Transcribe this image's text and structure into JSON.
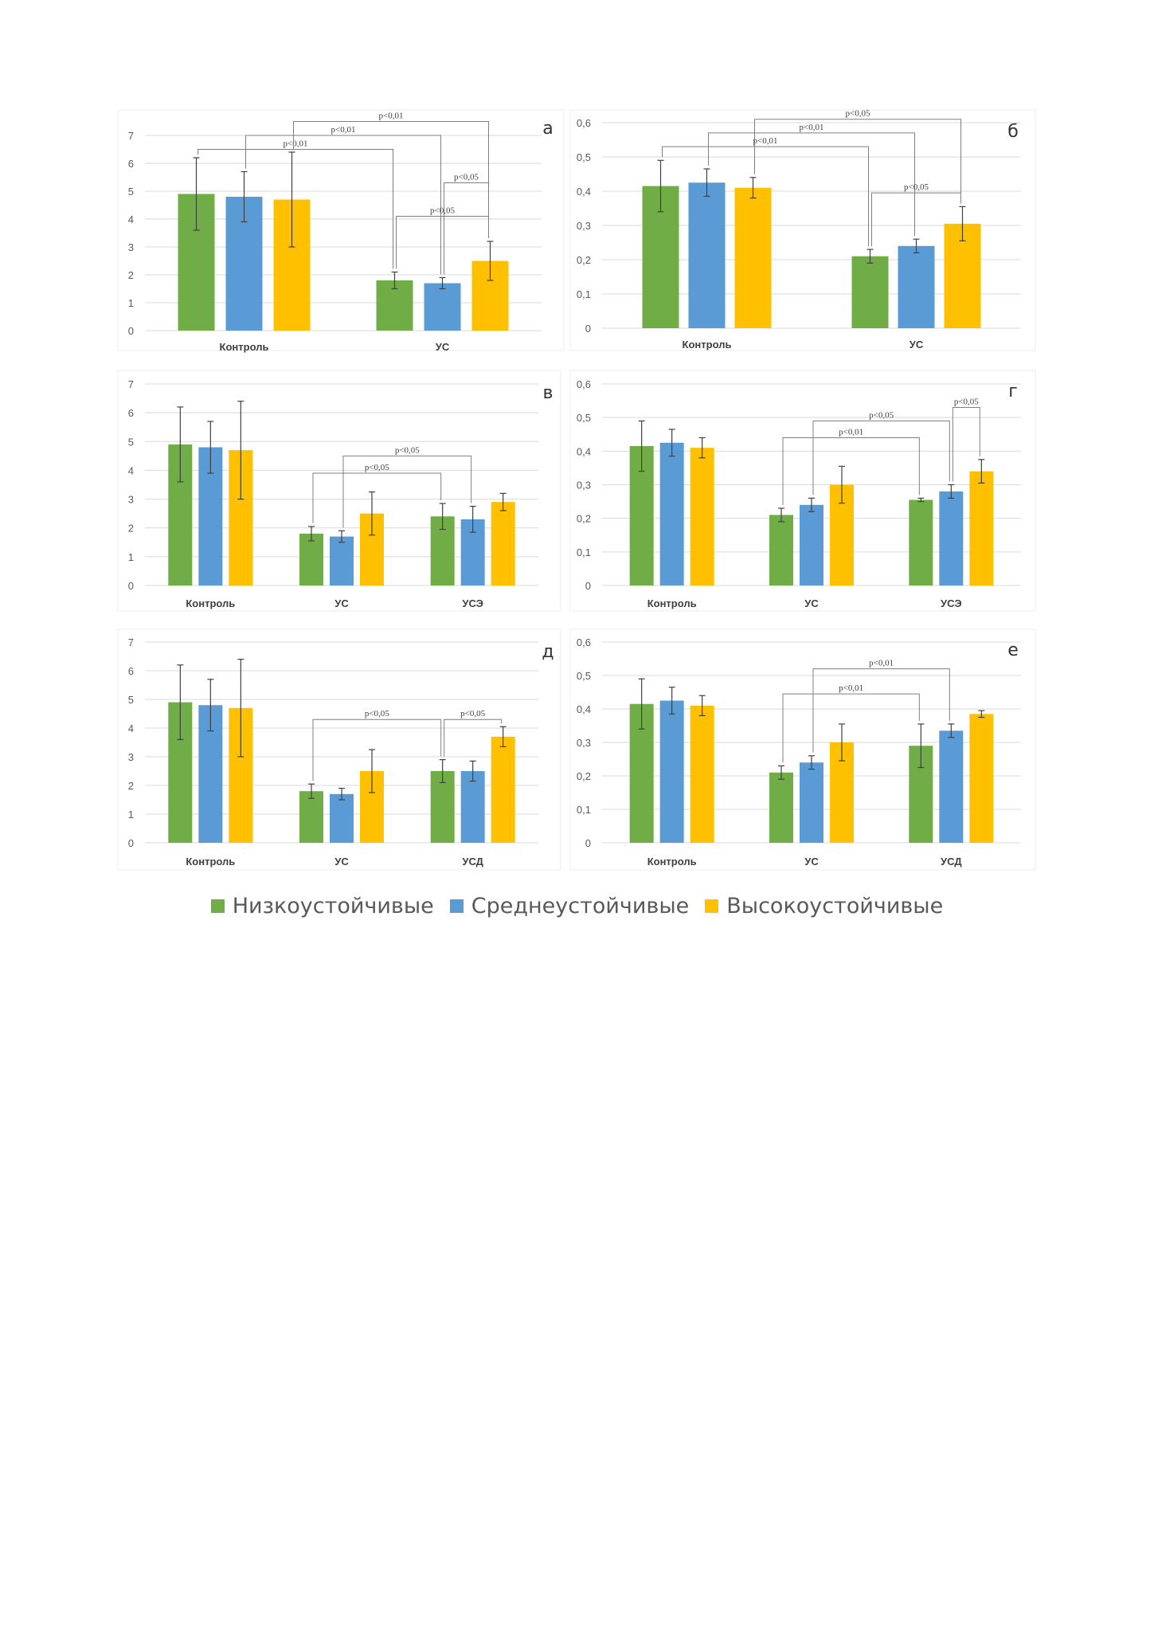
{
  "colors": {
    "green": "#70AD47",
    "blue": "#5B9BD5",
    "yellow": "#FFC000"
  },
  "legend": [
    {
      "name": "Низкоустойчивые",
      "color": "#70AD47"
    },
    {
      "name": "Среднеустойчивые",
      "color": "#5B9BD5"
    },
    {
      "name": "Высокоустойчивые",
      "color": "#FFC000"
    }
  ],
  "chart_data": [
    {
      "panel": "а",
      "type": "bar",
      "ylim": [
        0,
        7
      ],
      "yticks": [
        "0",
        "1",
        "2",
        "3",
        "4",
        "5",
        "6",
        "7"
      ],
      "categories": [
        "Контроль",
        "УС"
      ],
      "series": [
        {
          "name": "Низкоустойчивые",
          "values": [
            4.9,
            1.8
          ],
          "err": [
            1.3,
            0.3
          ]
        },
        {
          "name": "Среднеустойчивые",
          "values": [
            4.8,
            1.7
          ],
          "err": [
            0.9,
            0.2
          ]
        },
        {
          "name": "Высокоустойчивые",
          "values": [
            4.7,
            2.5
          ],
          "err": [
            1.7,
            0.7
          ]
        }
      ],
      "annotations": [
        {
          "text": "p<0,01",
          "from": [
            0,
            0
          ],
          "to": [
            1,
            0
          ],
          "level": 6.5
        },
        {
          "text": "p<0,01",
          "from": [
            0,
            1
          ],
          "to": [
            1,
            1
          ],
          "level": 7.0
        },
        {
          "text": "p<0,01",
          "from": [
            0,
            2
          ],
          "to": [
            1,
            2
          ],
          "level": 7.5
        },
        {
          "text": "p<0,05",
          "from": [
            1,
            0
          ],
          "to": [
            1,
            2
          ],
          "level": 4.1
        },
        {
          "text": "p<0,05",
          "from": [
            1,
            1
          ],
          "to": [
            1,
            2
          ],
          "level": 5.3
        }
      ]
    },
    {
      "panel": "б",
      "type": "bar",
      "ylim": [
        0,
        0.6
      ],
      "yticks": [
        "0",
        "0,1",
        "0,2",
        "0,3",
        "0,4",
        "0,5",
        "0,6"
      ],
      "categories": [
        "Контроль",
        "УС"
      ],
      "series": [
        {
          "name": "Низкоустойчивые",
          "values": [
            0.415,
            0.21
          ],
          "err": [
            0.075,
            0.02
          ]
        },
        {
          "name": "Среднеустойчивые",
          "values": [
            0.425,
            0.24
          ],
          "err": [
            0.04,
            0.02
          ]
        },
        {
          "name": "Высокоустойчивые",
          "values": [
            0.41,
            0.305
          ],
          "err": [
            0.03,
            0.05
          ]
        }
      ],
      "annotations": [
        {
          "text": "p<0,01",
          "from": [
            0,
            0
          ],
          "to": [
            1,
            0
          ],
          "level": 0.53
        },
        {
          "text": "p<0,01",
          "from": [
            0,
            1
          ],
          "to": [
            1,
            1
          ],
          "level": 0.57
        },
        {
          "text": "p<0,05",
          "from": [
            0,
            2
          ],
          "to": [
            1,
            2
          ],
          "level": 0.61
        },
        {
          "text": "p<0,05",
          "from": [
            1,
            0
          ],
          "to": [
            1,
            2
          ],
          "level": 0.395
        }
      ]
    },
    {
      "panel": "в",
      "type": "bar",
      "ylim": [
        0,
        7
      ],
      "yticks": [
        "0",
        "1",
        "2",
        "3",
        "4",
        "5",
        "6",
        "7"
      ],
      "categories": [
        "Контроль",
        "УС",
        "УСЭ"
      ],
      "series": [
        {
          "name": "Низкоустойчивые",
          "values": [
            4.9,
            1.8,
            2.4
          ],
          "err": [
            1.3,
            0.25,
            0.45
          ]
        },
        {
          "name": "Среднеустойчивые",
          "values": [
            4.8,
            1.7,
            2.3
          ],
          "err": [
            0.9,
            0.2,
            0.45
          ]
        },
        {
          "name": "Высокоустойчивые",
          "values": [
            4.7,
            2.5,
            2.9
          ],
          "err": [
            1.7,
            0.75,
            0.3
          ]
        }
      ],
      "annotations": [
        {
          "text": "p<0,05",
          "from": [
            1,
            0
          ],
          "to": [
            2,
            0
          ],
          "level": 3.9
        },
        {
          "text": "p<0,05",
          "from": [
            1,
            1
          ],
          "to": [
            2,
            1
          ],
          "level": 4.5
        }
      ]
    },
    {
      "panel": "г",
      "type": "bar",
      "ylim": [
        0,
        0.6
      ],
      "yticks": [
        "0",
        "0,1",
        "0,2",
        "0,3",
        "0,4",
        "0,5",
        "0,6"
      ],
      "categories": [
        "Контроль",
        "УС",
        "УСЭ"
      ],
      "series": [
        {
          "name": "Низкоустойчивые",
          "values": [
            0.415,
            0.21,
            0.255
          ],
          "err": [
            0.075,
            0.02,
            0.005
          ]
        },
        {
          "name": "Среднеустойчивые",
          "values": [
            0.425,
            0.24,
            0.28
          ],
          "err": [
            0.04,
            0.02,
            0.02
          ]
        },
        {
          "name": "Высокоустойчивые",
          "values": [
            0.41,
            0.3,
            0.34
          ],
          "err": [
            0.03,
            0.055,
            0.035
          ]
        }
      ],
      "annotations": [
        {
          "text": "p<0,01",
          "from": [
            1,
            0
          ],
          "to": [
            2,
            0
          ],
          "level": 0.44
        },
        {
          "text": "p<0,05",
          "from": [
            1,
            1
          ],
          "to": [
            2,
            1
          ],
          "level": 0.49
        },
        {
          "text": "p<0,05",
          "from": [
            2,
            1
          ],
          "to": [
            2,
            2
          ],
          "level": 0.53
        }
      ]
    },
    {
      "panel": "д",
      "type": "bar",
      "ylim": [
        0,
        7
      ],
      "yticks": [
        "0",
        "1",
        "2",
        "3",
        "4",
        "5",
        "6",
        "7"
      ],
      "categories": [
        "Контроль",
        "УС",
        "УСД"
      ],
      "series": [
        {
          "name": "Низкоустойчивые",
          "values": [
            4.9,
            1.8,
            2.5
          ],
          "err": [
            1.3,
            0.25,
            0.4
          ]
        },
        {
          "name": "Среднеустойчивые",
          "values": [
            4.8,
            1.7,
            2.5
          ],
          "err": [
            0.9,
            0.2,
            0.35
          ]
        },
        {
          "name": "Высокоустойчивые",
          "values": [
            4.7,
            2.5,
            3.7
          ],
          "err": [
            1.7,
            0.75,
            0.35
          ]
        }
      ],
      "annotations": [
        {
          "text": "p<0,05",
          "from": [
            1,
            0
          ],
          "to": [
            2,
            0
          ],
          "level": 4.3
        },
        {
          "text": "p<0,05",
          "from": [
            2,
            0
          ],
          "to": [
            2,
            2
          ],
          "level": 4.3
        }
      ]
    },
    {
      "panel": "е",
      "type": "bar",
      "ylim": [
        0,
        0.6
      ],
      "yticks": [
        "0",
        "0,1",
        "0,2",
        "0,3",
        "0,4",
        "0,5",
        "0,6"
      ],
      "categories": [
        "Контроль",
        "УС",
        "УСД"
      ],
      "series": [
        {
          "name": "Низкоустойчивые",
          "values": [
            0.415,
            0.21,
            0.29
          ],
          "err": [
            0.075,
            0.02,
            0.065
          ]
        },
        {
          "name": "Среднеустойчивые",
          "values": [
            0.425,
            0.24,
            0.335
          ],
          "err": [
            0.04,
            0.02,
            0.02
          ]
        },
        {
          "name": "Высокоустойчивые",
          "values": [
            0.41,
            0.3,
            0.385
          ],
          "err": [
            0.03,
            0.055,
            0.01
          ]
        }
      ],
      "annotations": [
        {
          "text": "p<0,01",
          "from": [
            1,
            0
          ],
          "to": [
            2,
            0
          ],
          "level": 0.445
        },
        {
          "text": "p<0,01",
          "from": [
            1,
            1
          ],
          "to": [
            2,
            1
          ],
          "level": 0.52
        }
      ]
    }
  ]
}
